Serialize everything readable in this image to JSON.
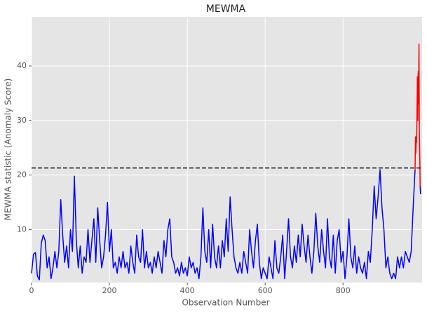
{
  "chart_data": {
    "type": "line",
    "title": "MEWMA",
    "x_label": "Observation Number",
    "y_label": "MEWMA statistic (Anomaly Score)",
    "xlim": [
      0,
      1003
    ],
    "ylim": [
      0.3,
      49
    ],
    "xticks": [
      0,
      200,
      400,
      600,
      800
    ],
    "yticks": [
      10,
      20,
      30,
      40
    ],
    "grid": true,
    "threshold": 21.3,
    "threshold_color": "#222222",
    "series": [
      {
        "color": "#0000ff",
        "x": [
          0,
          5,
          10,
          15,
          20,
          25,
          30,
          35,
          40,
          45,
          50,
          55,
          60,
          65,
          70,
          75,
          80,
          85,
          90,
          95,
          100,
          105,
          110,
          115,
          120,
          125,
          130,
          135,
          140,
          145,
          150,
          155,
          160,
          165,
          170,
          175,
          180,
          185,
          190,
          195,
          200,
          205,
          210,
          215,
          220,
          225,
          230,
          235,
          240,
          245,
          250,
          255,
          260,
          265,
          270,
          275,
          280,
          285,
          290,
          295,
          300,
          305,
          310,
          315,
          320,
          325,
          330,
          335,
          340,
          345,
          350,
          355,
          360,
          365,
          370,
          375,
          380,
          385,
          390,
          395,
          400,
          405,
          410,
          415,
          420,
          425,
          430,
          435,
          440,
          445,
          450,
          455,
          460,
          465,
          470,
          475,
          480,
          485,
          490,
          495,
          500,
          505,
          510,
          515,
          520,
          525,
          530,
          535,
          540,
          545,
          550,
          555,
          560,
          565,
          570,
          575,
          580,
          585,
          590,
          595,
          600,
          605,
          610,
          615,
          620,
          625,
          630,
          635,
          640,
          645,
          650,
          655,
          660,
          665,
          670,
          675,
          680,
          685,
          690,
          695,
          700,
          705,
          710,
          715,
          720,
          725,
          730,
          735,
          740,
          745,
          750,
          755,
          760,
          765,
          770,
          775,
          780,
          785,
          790,
          795,
          800,
          805,
          810,
          815,
          820,
          825,
          830,
          835,
          840,
          845,
          850,
          855,
          860,
          865,
          870,
          875,
          880,
          885,
          890,
          895,
          900,
          905,
          910,
          915,
          920,
          925,
          930,
          935,
          940,
          945,
          950,
          955,
          960,
          965,
          970,
          975,
          980,
          985,
          990,
          998,
          999
        ],
        "values": [
          2,
          5.5,
          5.8,
          1.5,
          0.8,
          7.5,
          9,
          8,
          3,
          5,
          1,
          3,
          6,
          3,
          6,
          15.5,
          9,
          4,
          7,
          3,
          10,
          6,
          19.8,
          8,
          3,
          7,
          2,
          5,
          4,
          10,
          4,
          8,
          12,
          4,
          14,
          8,
          3,
          5,
          9,
          15,
          6,
          10,
          3,
          4,
          2,
          5,
          3,
          6,
          3,
          4,
          2,
          7,
          4,
          2,
          9,
          5,
          4,
          10,
          3,
          6,
          3,
          4,
          2,
          5,
          3,
          6,
          4,
          2,
          8,
          5,
          10,
          12,
          5,
          4,
          2,
          3,
          1.5,
          4,
          2,
          3,
          1.5,
          5,
          3,
          4,
          2,
          3,
          1,
          5,
          14,
          6,
          4,
          10,
          3,
          11,
          5,
          3,
          7,
          3,
          8,
          5,
          12,
          6,
          16,
          10,
          5,
          3,
          2,
          4,
          2,
          6,
          4,
          2,
          10,
          6,
          3,
          8,
          11,
          4,
          1,
          3,
          2,
          1,
          5,
          3,
          1,
          8,
          3,
          2,
          5,
          9,
          1,
          6,
          12,
          5,
          3,
          7,
          4,
          9,
          5,
          11,
          7,
          4,
          9,
          5,
          2,
          6,
          13,
          7,
          4,
          10,
          6,
          3,
          12,
          5,
          3,
          9,
          2,
          8,
          10,
          4,
          6,
          1,
          5,
          12,
          5,
          3,
          7,
          2,
          5,
          3,
          2,
          4,
          1,
          6,
          4,
          10,
          18,
          12,
          16,
          21,
          14,
          10,
          3,
          5,
          2,
          1,
          2,
          1,
          5,
          3,
          5,
          3,
          6,
          5,
          4,
          6,
          14,
          21,
          null,
          18,
          16.5
        ]
      },
      {
        "color": "#ff0000",
        "x": [
          985,
          986,
          987,
          988,
          989,
          990,
          991,
          992,
          993,
          994,
          995,
          996,
          997,
          998
        ],
        "values": [
          21,
          27,
          24,
          27,
          26,
          32,
          38,
          30,
          39,
          33,
          44,
          28,
          24,
          18
        ]
      }
    ]
  }
}
